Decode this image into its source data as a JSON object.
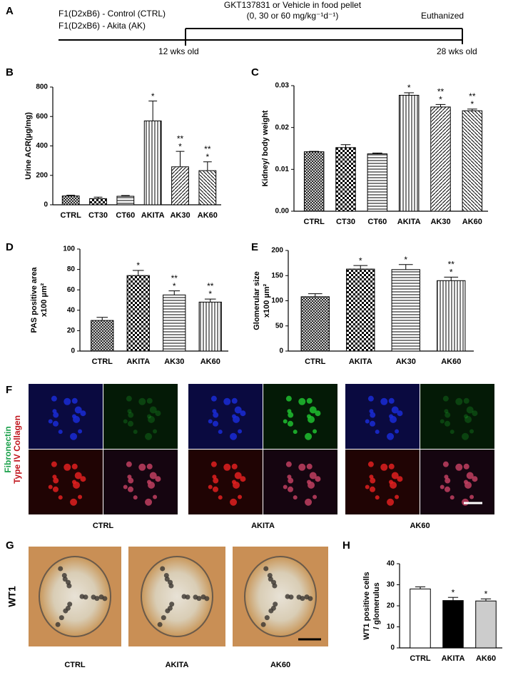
{
  "panel_labels": [
    "A",
    "B",
    "C",
    "D",
    "E",
    "F",
    "G",
    "H"
  ],
  "timeline": {
    "groups": [
      "F1(D2xB6) - Control (CTRL)",
      "F1(D2xB6) - Akita (AK)"
    ],
    "treatment": "GKT137831 or Vehicle in food pellet",
    "doses": "(0, 30 or 60 mg/kg⁻¹d⁻¹)",
    "end": "Euthanized",
    "start_age": "12 wks old",
    "end_age": "28 wks old"
  },
  "chart_data": [
    {
      "type": "bar",
      "ylabel": [
        "Urine ACR(µg/mg)"
      ],
      "categories": [
        "CTRL",
        "CT30",
        "CT60",
        "AKITA",
        "AK30",
        "AK60"
      ],
      "values": [
        60,
        42,
        58,
        570,
        258,
        232
      ],
      "errors": [
        5,
        10,
        5,
        135,
        105,
        60
      ],
      "significance": [
        null,
        null,
        null,
        [
          "*"
        ],
        [
          "**",
          "*"
        ],
        [
          "**",
          "*"
        ]
      ],
      "ylim": [
        0,
        800
      ],
      "yticks": [
        0,
        200,
        400,
        600,
        800
      ],
      "color": "#000000"
    },
    {
      "type": "bar",
      "ylabel": [
        "Kidney/ body weight"
      ],
      "categories": [
        "CTRL",
        "CT30",
        "CT60",
        "AKITA",
        "AK30",
        "AK60"
      ],
      "values": [
        0.0142,
        0.0152,
        0.0137,
        0.0277,
        0.0249,
        0.024
      ],
      "errors": [
        0.0001,
        0.0007,
        0.0002,
        0.0006,
        0.0006,
        0.0004
      ],
      "significance": [
        null,
        null,
        null,
        [
          "*"
        ],
        [
          "**",
          "*"
        ],
        [
          "**",
          "*"
        ]
      ],
      "ylim": [
        0,
        0.03
      ],
      "yticks": [
        {
          "value": 0,
          "label": "0.00"
        },
        {
          "value": 0.01,
          "label": "0.01"
        },
        {
          "value": 0.02,
          "label": "0.02"
        },
        {
          "value": 0.03,
          "label": "0.03"
        }
      ],
      "color": "#000000"
    },
    {
      "type": "bar",
      "ylabel": [
        "PAS positive area",
        "x100 µm²"
      ],
      "categories": [
        "CTRL",
        "AKITA",
        "AK30",
        "AK60"
      ],
      "values": [
        30,
        74,
        55,
        48
      ],
      "errors": [
        3,
        5,
        4,
        3
      ],
      "significance": [
        null,
        [
          "*"
        ],
        [
          "**",
          "*"
        ],
        [
          "**",
          "*"
        ]
      ],
      "ylim": [
        0,
        100
      ],
      "yticks": [
        0,
        20,
        40,
        60,
        80,
        100
      ],
      "color": "#000000"
    },
    {
      "type": "bar",
      "ylabel": [
        "Glomerular size",
        "x100 µm²"
      ],
      "categories": [
        "CTRL",
        "AKITA",
        "AK30",
        "AK60"
      ],
      "values": [
        108,
        163,
        162,
        140
      ],
      "errors": [
        6,
        7,
        10,
        7
      ],
      "significance": [
        null,
        [
          "*"
        ],
        [
          "*"
        ],
        [
          "**",
          "*"
        ]
      ],
      "ylim": [
        0,
        200
      ],
      "yticks": [
        0,
        50,
        100,
        150,
        200
      ],
      "color": "#000000"
    },
    {
      "type": "bar",
      "ylabel": [
        "WT1 positive cells",
        "/ glomerulus"
      ],
      "categories": [
        "CTRL",
        "AKITA",
        "AK60"
      ],
      "values": [
        28,
        22.5,
        22.3
      ],
      "errors": [
        1,
        1.5,
        1
      ],
      "significance": [
        null,
        [
          "*"
        ],
        [
          "*"
        ]
      ],
      "ylim": [
        0,
        40
      ],
      "yticks": [
        0,
        10,
        20,
        30,
        40
      ],
      "colors": [
        "#ffffff",
        "#000000",
        "#cccccc"
      ]
    }
  ],
  "immunofluorescence": {
    "stains": [
      "Fibronectin",
      "Type IV Collagen"
    ],
    "groups": [
      "CTRL",
      "AKITA",
      "AK60"
    ]
  },
  "histology": {
    "stain": "WT1",
    "groups": [
      "CTRL",
      "AKITA",
      "AK60"
    ]
  }
}
